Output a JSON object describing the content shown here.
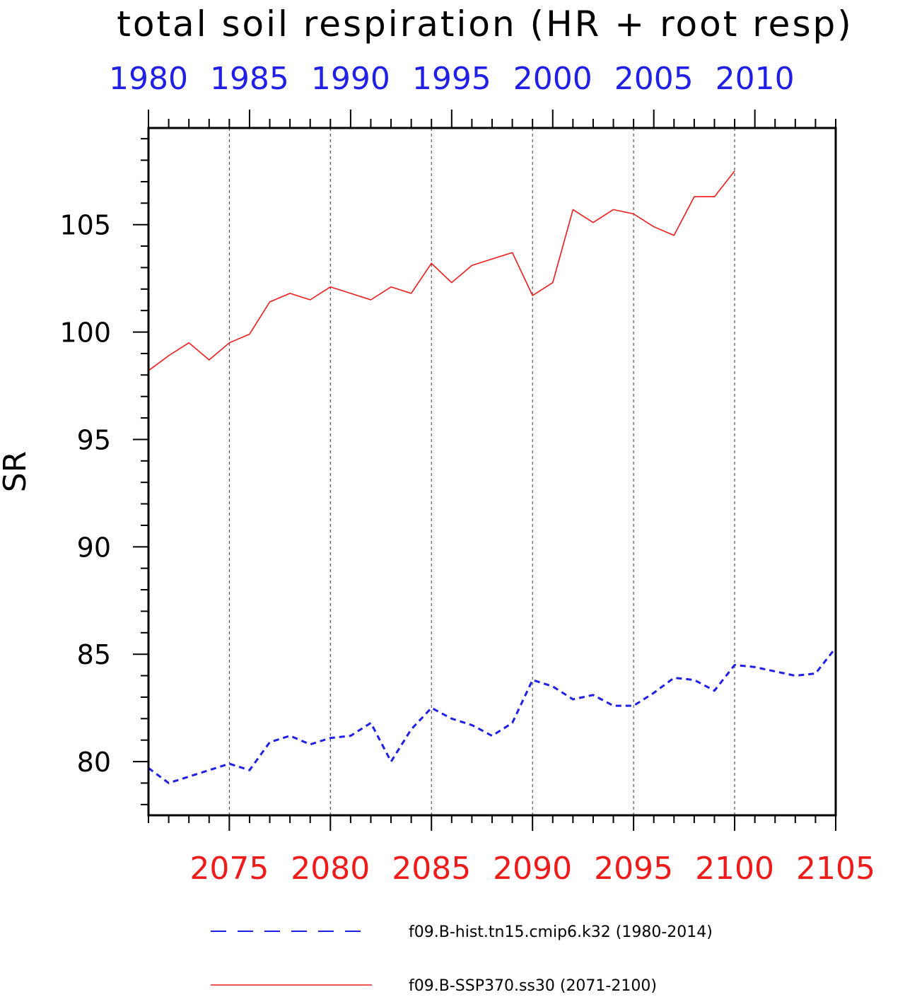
{
  "chart_data": {
    "type": "line",
    "title": "total soil respiration (HR + root resp)",
    "ylabel": "SR",
    "ylim": [
      77.5,
      109.5
    ],
    "yticks": [
      80,
      85,
      90,
      95,
      100,
      105
    ],
    "grid_x": true,
    "top_axis": {
      "color": "#1f1fe6",
      "range": [
        1980,
        2014
      ],
      "tick_labels": [
        "1980",
        "1985",
        "1990",
        "1995",
        "2000",
        "2005",
        "2010"
      ],
      "tick_values": [
        1980,
        1985,
        1990,
        1995,
        2000,
        2005,
        2010
      ]
    },
    "bottom_axis": {
      "color": "#ee1b1b",
      "range": [
        2071,
        2105
      ],
      "tick_labels": [
        "2075",
        "2080",
        "2085",
        "2090",
        "2095",
        "2100",
        "2105"
      ],
      "tick_values": [
        2075,
        2080,
        2085,
        2090,
        2095,
        2100,
        2105
      ]
    },
    "legend_position": "bottom",
    "series": [
      {
        "name": "f09.B-hist.tn15.cmip6.k32 (1980-2014)",
        "color": "#1f1fe6",
        "style": "dashed",
        "axis": "top",
        "x": [
          1980,
          1981,
          1982,
          1983,
          1984,
          1985,
          1986,
          1987,
          1988,
          1989,
          1990,
          1991,
          1992,
          1993,
          1994,
          1995,
          1996,
          1997,
          1998,
          1999,
          2000,
          2001,
          2002,
          2003,
          2004,
          2005,
          2006,
          2007,
          2008,
          2009,
          2010,
          2011,
          2012,
          2013,
          2014
        ],
        "values": [
          79.7,
          79.0,
          79.3,
          79.6,
          79.9,
          79.6,
          80.9,
          81.2,
          80.8,
          81.1,
          81.2,
          81.8,
          80.0,
          81.5,
          82.5,
          82.0,
          81.7,
          81.2,
          81.8,
          83.8,
          83.5,
          82.9,
          83.1,
          82.6,
          82.6,
          83.2,
          83.9,
          83.8,
          83.3,
          84.5,
          84.4,
          84.2,
          84.0,
          84.1,
          85.3
        ]
      },
      {
        "name": "f09.B-SSP370.ss30 (2071-2100)",
        "color": "#ee1b1b",
        "style": "solid",
        "axis": "bottom",
        "x": [
          2071,
          2072,
          2073,
          2074,
          2075,
          2076,
          2077,
          2078,
          2079,
          2080,
          2081,
          2082,
          2083,
          2084,
          2085,
          2086,
          2087,
          2088,
          2089,
          2090,
          2091,
          2092,
          2093,
          2094,
          2095,
          2096,
          2097,
          2098,
          2099,
          2100
        ],
        "values": [
          98.2,
          98.9,
          99.5,
          98.7,
          99.5,
          99.9,
          101.4,
          101.8,
          101.5,
          102.1,
          101.8,
          101.5,
          102.1,
          101.8,
          103.2,
          102.3,
          103.1,
          103.4,
          103.7,
          101.7,
          102.3,
          105.7,
          105.1,
          105.7,
          105.5,
          104.9,
          104.5,
          106.3,
          106.3,
          107.5
        ]
      }
    ]
  }
}
